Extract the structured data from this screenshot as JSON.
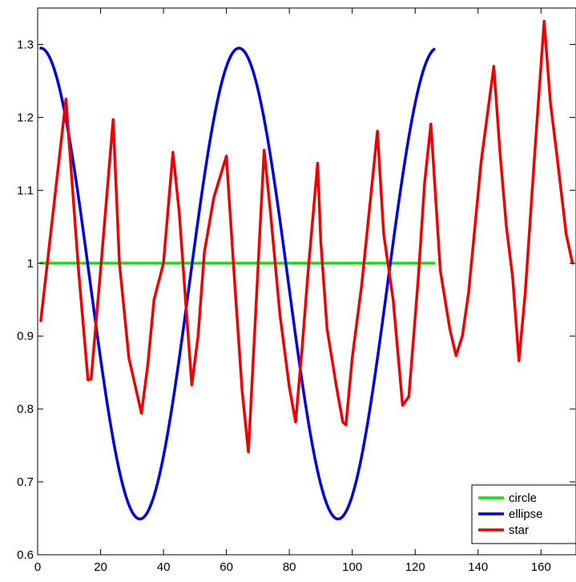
{
  "chart_data": {
    "type": "line",
    "title": "",
    "xlabel": "",
    "ylabel": "",
    "xlim": [
      0,
      170
    ],
    "ylim": [
      0.6,
      1.35
    ],
    "xticks": [
      0,
      20,
      40,
      60,
      80,
      100,
      120,
      140,
      160
    ],
    "yticks": [
      0.6,
      0.7,
      0.8,
      0.9,
      1.0,
      1.1,
      1.2,
      1.3
    ],
    "xtick_labels": [
      "0",
      "20",
      "40",
      "60",
      "80",
      "100",
      "120",
      "140",
      "160"
    ],
    "ytick_labels": [
      "0.6",
      "0.7",
      "0.8",
      "0.9",
      "1",
      "1.1",
      "1.2",
      "1.3"
    ],
    "grid": false,
    "legend_position": "bottom-right",
    "series": [
      {
        "name": "circle",
        "color": "#00ee00",
        "x": [
          1,
          126
        ],
        "y": [
          1.0,
          1.0
        ],
        "note": ""
      },
      {
        "name": "ellipse",
        "color": "#0000dd",
        "generator": "cosine",
        "x_start": 1,
        "x_end": 126,
        "center": 0.972,
        "amplitude": 0.323,
        "period": 63,
        "phase_x": 1
      },
      {
        "name": "star",
        "color": "#ee0000",
        "x": [
          1,
          9,
          13,
          16,
          17,
          20,
          24,
          26,
          29,
          33,
          35,
          37,
          40,
          43,
          45,
          47,
          49,
          51,
          53,
          56,
          60,
          61,
          63,
          65,
          67,
          72,
          74,
          77,
          80,
          82,
          84,
          86,
          89,
          90,
          92,
          95,
          97,
          98,
          100,
          103,
          108,
          110,
          113,
          116,
          118,
          121,
          123,
          125,
          128,
          131,
          133,
          135,
          137,
          141,
          145,
          147,
          149,
          151,
          153,
          155,
          158,
          161,
          163,
          165,
          168,
          170
        ],
        "y": [
          0.921,
          1.225,
          0.99,
          0.84,
          0.841,
          0.99,
          1.197,
          1.0,
          0.87,
          0.794,
          0.86,
          0.95,
          1.0,
          1.152,
          1.07,
          0.95,
          0.833,
          0.9,
          1.015,
          1.09,
          1.147,
          1.08,
          0.95,
          0.825,
          0.741,
          1.155,
          1.07,
          0.93,
          0.83,
          0.782,
          0.88,
          0.99,
          1.137,
          1.03,
          0.91,
          0.83,
          0.782,
          0.778,
          0.87,
          0.97,
          1.181,
          1.04,
          0.95,
          0.805,
          0.817,
          0.98,
          1.11,
          1.191,
          0.99,
          0.91,
          0.873,
          0.9,
          0.96,
          1.14,
          1.27,
          1.15,
          1.05,
          0.98,
          0.866,
          0.96,
          1.15,
          1.332,
          1.22,
          1.15,
          1.04,
          1.0
        ]
      }
    ]
  }
}
